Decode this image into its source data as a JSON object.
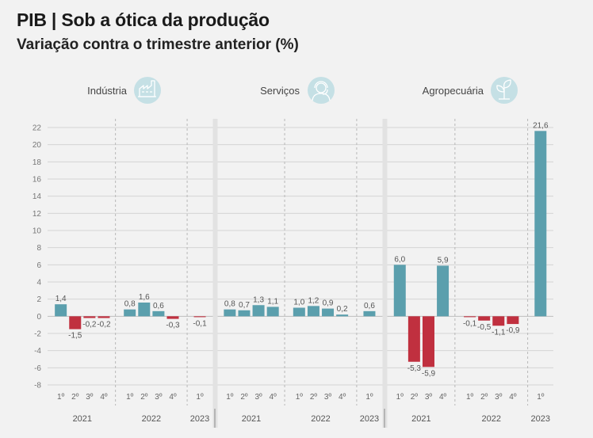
{
  "header": {
    "title": "PIB | Sob a ótica da produção",
    "subtitle": "Variação contra o trimestre anterior (%)"
  },
  "icons": [
    "factory-icon",
    "headset-person-icon",
    "plant-icon"
  ],
  "colors": {
    "positive": "#5b9fad",
    "negative": "#c0303f",
    "icon_circle": "#c5e0e5",
    "grid": "#d4d4d4",
    "divider": "#e0e0e0"
  },
  "chart_data": {
    "type": "bar",
    "title": "PIB | Sob a ótica da produção",
    "subtitle": "Variação contra o trimestre anterior (%)",
    "ylim": [
      -8,
      22
    ],
    "yticks": [
      -8,
      -6,
      -4,
      -2,
      0,
      2,
      4,
      6,
      8,
      10,
      12,
      14,
      16,
      18,
      20,
      22
    ],
    "grid": true,
    "panels": [
      {
        "name": "Indústria",
        "icon": "factory-icon",
        "groups": [
          {
            "year": "2021",
            "quarters": [
              "1º",
              "2º",
              "3º",
              "4º"
            ],
            "values": [
              1.4,
              -1.5,
              -0.2,
              -0.2
            ],
            "labels": [
              "1,4",
              "-1,5",
              "-0,2",
              "-0,2"
            ]
          },
          {
            "year": "2022",
            "quarters": [
              "1º",
              "2º",
              "3º",
              "4º"
            ],
            "values": [
              0.8,
              1.6,
              0.6,
              -0.3
            ],
            "labels": [
              "0,8",
              "1,6",
              "0,6",
              "-0,3"
            ]
          },
          {
            "year": "2023",
            "quarters": [
              "1º"
            ],
            "values": [
              -0.1
            ],
            "labels": [
              "-0,1"
            ]
          }
        ]
      },
      {
        "name": "Serviços",
        "icon": "headset-person-icon",
        "groups": [
          {
            "year": "2021",
            "quarters": [
              "1º",
              "2º",
              "3º",
              "4º"
            ],
            "values": [
              0.8,
              0.7,
              1.3,
              1.1
            ],
            "labels": [
              "0,8",
              "0,7",
              "1,3",
              "1,1"
            ]
          },
          {
            "year": "2022",
            "quarters": [
              "1º",
              "2º",
              "3º",
              "4º"
            ],
            "values": [
              1.0,
              1.2,
              0.9,
              0.2
            ],
            "labels": [
              "1,0",
              "1,2",
              "0,9",
              "0,2"
            ]
          },
          {
            "year": "2023",
            "quarters": [
              "1º"
            ],
            "values": [
              0.6
            ],
            "labels": [
              "0,6"
            ]
          }
        ]
      },
      {
        "name": "Agropecuária",
        "icon": "plant-icon",
        "groups": [
          {
            "year": "2021",
            "quarters": [
              "1º",
              "2º",
              "3º",
              "4º"
            ],
            "values": [
              6.0,
              -5.3,
              -5.9,
              5.9
            ],
            "labels": [
              "6,0",
              "-5,3",
              "-5,9",
              "5,9"
            ]
          },
          {
            "year": "2022",
            "quarters": [
              "1º",
              "2º",
              "3º",
              "4º"
            ],
            "values": [
              -0.1,
              -0.5,
              -1.1,
              -0.9
            ],
            "labels": [
              "-0,1",
              "-0,5",
              "-1,1",
              "-0,9"
            ]
          },
          {
            "year": "2023",
            "quarters": [
              "1º"
            ],
            "values": [
              21.6
            ],
            "labels": [
              "21,6"
            ]
          }
        ]
      }
    ]
  }
}
